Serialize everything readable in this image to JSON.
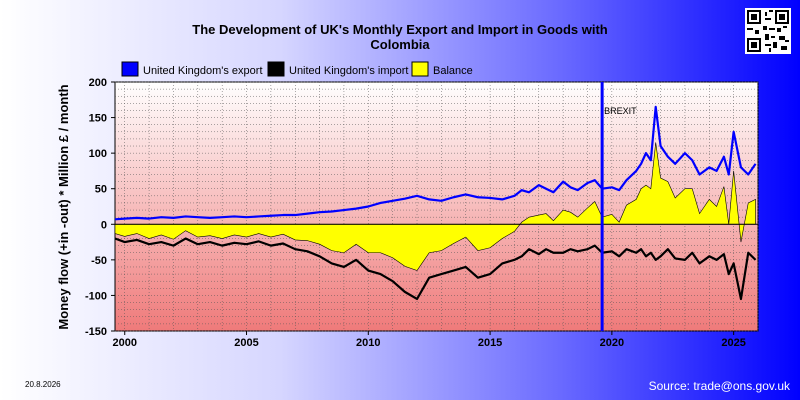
{
  "source_text": "Source: trade@ons.gov.uk",
  "date_stamp": "20.8.2026",
  "chart_data": {
    "type": "line",
    "title_lines": [
      "The Development of UK's Monthly Export and Import in Goods with",
      "Colombia"
    ],
    "ylabel": "Money flow (+in -out) * Million £ / month",
    "xlabel": "",
    "xlim": [
      1999.6,
      2026.0
    ],
    "ylim": [
      -150,
      200
    ],
    "x_ticks": [
      "2000",
      "2005",
      "2010",
      "2015",
      "2020",
      "2025"
    ],
    "y_ticks": [
      "200",
      "150",
      "100",
      "50",
      "0",
      "-50",
      "-100",
      "-150"
    ],
    "grid": true,
    "legend": "top-left",
    "legend_entries": [
      {
        "name": "United Kingdom's export",
        "color": "#0000ff"
      },
      {
        "name": "United Kingdom's import",
        "color": "#000000"
      },
      {
        "name": "Balance",
        "color": "#ffff00"
      }
    ],
    "annotation": {
      "label": "BREXIT",
      "x": 2019.6
    },
    "series": [
      {
        "name": "United Kingdom's export",
        "color": "#0000ff",
        "x": [
          1999.6,
          2000,
          2000.5,
          2001,
          2001.5,
          2002,
          2002.5,
          2003,
          2003.5,
          2004,
          2004.5,
          2005,
          2005.5,
          2006,
          2006.5,
          2007,
          2007.5,
          2008,
          2008.5,
          2009,
          2009.5,
          2010,
          2010.5,
          2011,
          2011.5,
          2012,
          2012.5,
          2013,
          2013.5,
          2014,
          2014.5,
          2015,
          2015.5,
          2016,
          2016.3,
          2016.6,
          2017,
          2017.3,
          2017.6,
          2018,
          2018.3,
          2018.6,
          2019,
          2019.3,
          2019.6,
          2020,
          2020.3,
          2020.6,
          2021,
          2021.2,
          2021.4,
          2021.6,
          2021.8,
          2022,
          2022.3,
          2022.6,
          2023,
          2023.3,
          2023.6,
          2024,
          2024.3,
          2024.6,
          2024.8,
          2025,
          2025.3,
          2025.6,
          2025.9
        ],
        "y": [
          7,
          8,
          9,
          8,
          10,
          9,
          11,
          10,
          9,
          10,
          11,
          10,
          11,
          12,
          13,
          13,
          15,
          17,
          18,
          20,
          22,
          25,
          30,
          33,
          36,
          40,
          35,
          33,
          38,
          42,
          38,
          37,
          35,
          40,
          48,
          45,
          55,
          50,
          45,
          60,
          52,
          48,
          58,
          62,
          50,
          52,
          48,
          62,
          75,
          85,
          100,
          90,
          165,
          110,
          95,
          85,
          100,
          90,
          70,
          80,
          75,
          95,
          70,
          130,
          80,
          70,
          85
        ]
      },
      {
        "name": "United Kingdom's import",
        "color": "#000000",
        "x": [
          1999.6,
          2000,
          2000.5,
          2001,
          2001.5,
          2002,
          2002.5,
          2003,
          2003.5,
          2004,
          2004.5,
          2005,
          2005.5,
          2006,
          2006.5,
          2007,
          2007.5,
          2008,
          2008.5,
          2009,
          2009.5,
          2010,
          2010.5,
          2011,
          2011.5,
          2012,
          2012.5,
          2013,
          2013.5,
          2014,
          2014.5,
          2015,
          2015.5,
          2016,
          2016.3,
          2016.6,
          2017,
          2017.3,
          2017.6,
          2018,
          2018.3,
          2018.6,
          2019,
          2019.3,
          2019.6,
          2020,
          2020.3,
          2020.6,
          2021,
          2021.2,
          2021.4,
          2021.6,
          2021.8,
          2022,
          2022.3,
          2022.6,
          2023,
          2023.3,
          2023.6,
          2024,
          2024.3,
          2024.6,
          2024.8,
          2025,
          2025.3,
          2025.6,
          2025.9
        ],
        "y": [
          -20,
          -25,
          -22,
          -28,
          -25,
          -30,
          -20,
          -28,
          -25,
          -30,
          -26,
          -28,
          -24,
          -30,
          -27,
          -35,
          -38,
          -45,
          -55,
          -60,
          -50,
          -65,
          -70,
          -80,
          -95,
          -105,
          -75,
          -70,
          -65,
          -60,
          -75,
          -70,
          -55,
          -50,
          -45,
          -35,
          -42,
          -35,
          -40,
          -40,
          -35,
          -38,
          -35,
          -30,
          -40,
          -38,
          -45,
          -35,
          -40,
          -35,
          -45,
          -40,
          -50,
          -45,
          -35,
          -48,
          -50,
          -40,
          -55,
          -45,
          -50,
          -42,
          -70,
          -55,
          -105,
          -40,
          -50
        ]
      },
      {
        "name": "Balance",
        "color": "#ffff00",
        "x": [
          1999.6,
          2000,
          2000.5,
          2001,
          2001.5,
          2002,
          2002.5,
          2003,
          2003.5,
          2004,
          2004.5,
          2005,
          2005.5,
          2006,
          2006.5,
          2007,
          2007.5,
          2008,
          2008.5,
          2009,
          2009.5,
          2010,
          2010.5,
          2011,
          2011.5,
          2012,
          2012.5,
          2013,
          2013.5,
          2014,
          2014.5,
          2015,
          2015.5,
          2016,
          2016.3,
          2016.6,
          2017,
          2017.3,
          2017.6,
          2018,
          2018.3,
          2018.6,
          2019,
          2019.3,
          2019.6,
          2020,
          2020.3,
          2020.6,
          2021,
          2021.2,
          2021.4,
          2021.6,
          2021.8,
          2022,
          2022.3,
          2022.6,
          2023,
          2023.3,
          2023.6,
          2024,
          2024.3,
          2024.6,
          2024.8,
          2025,
          2025.3,
          2025.6,
          2025.9
        ],
        "y": [
          -13,
          -17,
          -13,
          -20,
          -15,
          -21,
          -9,
          -18,
          -16,
          -20,
          -15,
          -18,
          -13,
          -18,
          -14,
          -22,
          -23,
          -28,
          -37,
          -40,
          -28,
          -40,
          -40,
          -47,
          -59,
          -65,
          -40,
          -37,
          -27,
          -18,
          -37,
          -33,
          -20,
          -10,
          3,
          10,
          13,
          15,
          5,
          20,
          17,
          10,
          23,
          32,
          10,
          14,
          3,
          27,
          35,
          50,
          55,
          50,
          115,
          65,
          60,
          37,
          50,
          50,
          15,
          35,
          25,
          53,
          0,
          75,
          -25,
          30,
          35
        ]
      }
    ]
  }
}
